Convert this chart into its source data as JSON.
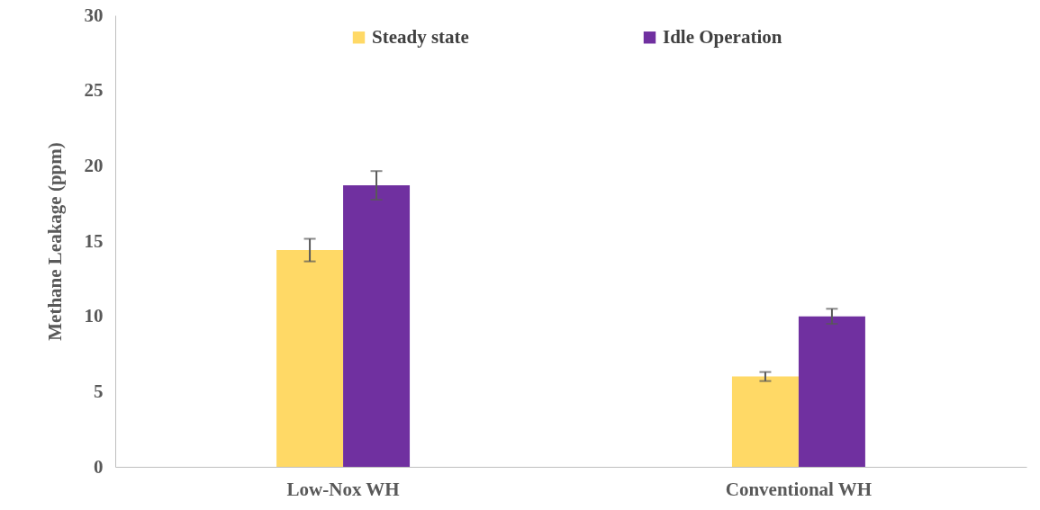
{
  "chart_data": {
    "type": "bar",
    "ylabel": "Methane Leakage (ppm)",
    "categories": [
      "Low-Nox WH",
      "Conventional WH"
    ],
    "series": [
      {
        "name": "Steady state",
        "color": "#ffd966",
        "values": [
          14.4,
          6.0
        ],
        "errors": [
          0.75,
          0.3
        ]
      },
      {
        "name": "Idle Operation",
        "color": "#7030a0",
        "values": [
          18.7,
          10.0
        ],
        "errors": [
          0.95,
          0.5
        ]
      }
    ],
    "ylim": [
      0,
      30
    ],
    "yticks": [
      0,
      5,
      10,
      15,
      20,
      25,
      30
    ],
    "grid": false,
    "legend": "top"
  }
}
